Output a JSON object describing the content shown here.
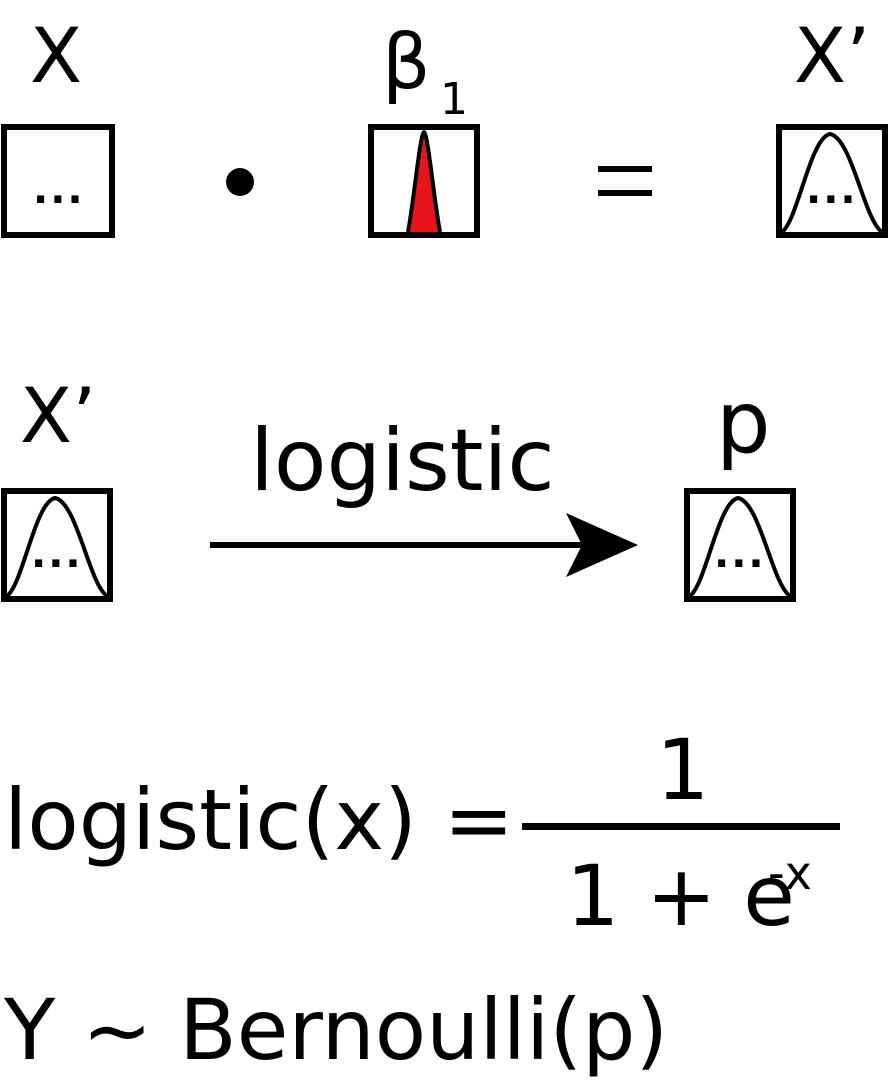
{
  "row1": {
    "x_label": "X",
    "beta_label": "β",
    "beta_subscript": "1",
    "xprime_label": "X’",
    "ellipsis": "...",
    "equals": "=",
    "narrow_fill_color": "#e8141c"
  },
  "row2": {
    "xprime_label": "X’",
    "arrow_label": "logistic",
    "p_label": "p",
    "ellipsis": "..."
  },
  "formula": {
    "lhs": "logistic(x) =",
    "numerator": "1",
    "denominator_base": "1 + e",
    "denominator_exponent": "-x"
  },
  "distribution": {
    "text": "Y ~ Bernoulli(p)"
  }
}
